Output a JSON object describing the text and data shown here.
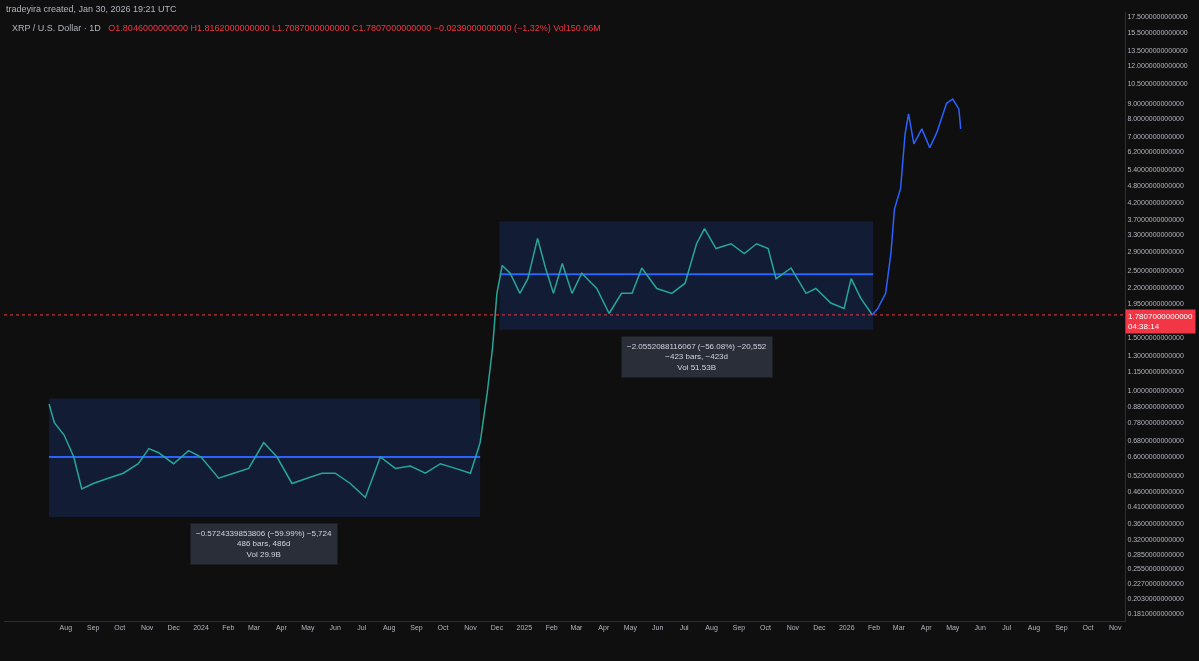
{
  "chart_data": {
    "type": "line",
    "title": "XRP / U.S. Dollar · 1D",
    "subtitle": "O1.8046000000000 H1.8162000000000 L1.7087000000000 C1.7807000000000 −0.0239000000000 (−1.32%) Vol150.06M",
    "annotations": [
      "tradeyira created, Jan 30, 2026 19:21 UTC",
      {
        "text": "−0.5724339853806 (−59.99%) −5,724\n486 bars, 486d\nVol 29.9B",
        "x": "2024-03-12",
        "y": 0.379
      },
      {
        "text": "−2.0552088116067 (−56.08%) −20,552\n−423 bars, −423d\nVol 51.53B",
        "x": "2025-07-15",
        "y": 1.59
      }
    ],
    "series": [
      {
        "color": "#2962ff",
        "x": [
          "2023-07-13",
          "2024-11-12"
        ],
        "values": [
          0.6,
          0.6
        ],
        "lower": [
          0.379,
          0.379
        ],
        "upper": [
          0.94,
          0.94
        ]
      },
      {
        "color": "#2962ff",
        "x": [
          "2024-12-04",
          "2026-01-31"
        ],
        "values": [
          2.43,
          2.43
        ],
        "lower": [
          1.59,
          1.59
        ],
        "upper": [
          3.64,
          3.64
        ]
      },
      {
        "color": "#26a69a",
        "x": [
          "2023-07-13",
          "2023-07-19",
          "2023-07-30",
          "2023-08-10",
          "2023-08-19",
          "2023-09-01",
          "2023-09-18",
          "2023-10-05",
          "2023-10-22",
          "2023-11-03",
          "2023-11-14",
          "2023-12-01",
          "2023-12-18",
          "2024-01-01",
          "2024-01-21",
          "2024-02-07",
          "2024-02-24",
          "2024-03-12",
          "2024-03-27",
          "2024-04-13",
          "2024-04-30",
          "2024-05-17",
          "2024-06-01",
          "2024-06-18",
          "2024-07-05",
          "2024-07-22",
          "2024-08-08",
          "2024-08-25",
          "2024-09-11",
          "2024-09-28",
          "2024-10-15",
          "2024-11-01",
          "2024-11-12",
          "2024-11-20",
          "2024-11-26",
          "2024-12-01",
          "2024-12-07",
          "2024-12-16",
          "2024-12-27",
          "2025-01-05",
          "2025-01-16",
          "2025-01-25",
          "2025-02-03",
          "2025-02-13",
          "2025-02-24",
          "2025-03-07",
          "2025-03-24",
          "2025-04-07",
          "2025-04-21",
          "2025-05-03",
          "2025-05-14",
          "2025-05-31",
          "2025-06-17",
          "2025-07-02",
          "2025-07-15",
          "2025-07-24",
          "2025-08-06",
          "2025-08-23",
          "2025-09-07",
          "2025-09-21",
          "2025-10-04",
          "2025-10-13",
          "2025-10-30",
          "2025-11-16",
          "2025-11-27",
          "2025-12-14",
          "2025-12-29",
          "2026-01-06",
          "2026-01-17",
          "2026-01-30"
        ],
        "values": [
          0.9,
          0.78,
          0.71,
          0.6,
          0.47,
          0.49,
          0.51,
          0.53,
          0.57,
          0.64,
          0.62,
          0.57,
          0.63,
          0.6,
          0.51,
          0.53,
          0.55,
          0.67,
          0.6,
          0.49,
          0.51,
          0.53,
          0.53,
          0.49,
          0.44,
          0.6,
          0.55,
          0.56,
          0.53,
          0.57,
          0.55,
          0.53,
          0.67,
          0.98,
          1.38,
          2.1,
          2.6,
          2.45,
          2.1,
          2.35,
          3.2,
          2.55,
          2.1,
          2.64,
          2.1,
          2.45,
          2.18,
          1.8,
          2.1,
          2.1,
          2.55,
          2.18,
          2.1,
          2.27,
          3.07,
          3.45,
          2.96,
          3.07,
          2.85,
          3.07,
          2.96,
          2.35,
          2.55,
          2.1,
          2.18,
          1.95,
          1.87,
          2.35,
          2.02,
          1.78
        ]
      },
      {
        "color": "#2962ff",
        "x": [
          "2026-01-30",
          "2026-02-05",
          "2026-02-14",
          "2026-02-20",
          "2026-02-24",
          "2026-03-03",
          "2026-03-08",
          "2026-03-12",
          "2026-03-18",
          "2026-03-27",
          "2026-04-05",
          "2026-04-13",
          "2026-04-24",
          "2026-05-01",
          "2026-05-08",
          "2026-05-10"
        ],
        "values": [
          1.78,
          1.87,
          2.1,
          2.85,
          4.0,
          4.7,
          7.1,
          8.3,
          6.6,
          7.4,
          6.4,
          7.2,
          9.0,
          9.3,
          8.6,
          7.4
        ]
      }
    ],
    "ref_lines": [
      {
        "axis": "y",
        "value": 1.7807,
        "label": "1.7807000000000\n04:38:14",
        "color": "#f23645",
        "line_style": "dotted"
      }
    ],
    "log": true,
    "grid": false,
    "xlim": [
      "2023-05-23",
      "2026-11-12"
    ],
    "xticks": [
      {
        "value": "2023-08-01",
        "label": "Aug"
      },
      {
        "value": "2023-09-01",
        "label": "Sep"
      },
      {
        "value": "2023-10-01",
        "label": "Oct"
      },
      {
        "value": "2023-11-01",
        "label": "Nov"
      },
      {
        "value": "2023-12-01",
        "label": "Dec"
      },
      {
        "value": "2024-01-01",
        "label": "2024"
      },
      {
        "value": "2024-02-01",
        "label": "Feb"
      },
      {
        "value": "2024-03-01",
        "label": "Mar"
      },
      {
        "value": "2024-04-01",
        "label": "Apr"
      },
      {
        "value": "2024-05-01",
        "label": "May"
      },
      {
        "value": "2024-06-01",
        "label": "Jun"
      },
      {
        "value": "2024-07-01",
        "label": "Jul"
      },
      {
        "value": "2024-08-01",
        "label": "Aug"
      },
      {
        "value": "2024-09-01",
        "label": "Sep"
      },
      {
        "value": "2024-10-01",
        "label": "Oct"
      },
      {
        "value": "2024-11-01",
        "label": "Nov"
      },
      {
        "value": "2024-12-01",
        "label": "Dec"
      },
      {
        "value": "2025-01-01",
        "label": "2025"
      },
      {
        "value": "2025-02-01",
        "label": "Feb"
      },
      {
        "value": "2025-03-01",
        "label": "Mar"
      },
      {
        "value": "2025-04-01",
        "label": "Apr"
      },
      {
        "value": "2025-05-01",
        "label": "May"
      },
      {
        "value": "2025-06-01",
        "label": "Jun"
      },
      {
        "value": "2025-07-01",
        "label": "Jul"
      },
      {
        "value": "2025-08-01",
        "label": "Aug"
      },
      {
        "value": "2025-09-01",
        "label": "Sep"
      },
      {
        "value": "2025-10-01",
        "label": "Oct"
      },
      {
        "value": "2025-11-01",
        "label": "Nov"
      },
      {
        "value": "2025-12-01",
        "label": "Dec"
      },
      {
        "value": "2026-01-01",
        "label": "2026"
      },
      {
        "value": "2026-02-01",
        "label": "Feb"
      },
      {
        "value": "2026-03-01",
        "label": "Mar"
      },
      {
        "value": "2026-04-01",
        "label": "Apr"
      },
      {
        "value": "2026-05-01",
        "label": "May"
      },
      {
        "value": "2026-06-01",
        "label": "Jun"
      },
      {
        "value": "2026-07-01",
        "label": "Jul"
      },
      {
        "value": "2026-08-01",
        "label": "Aug"
      },
      {
        "value": "2026-09-01",
        "label": "Sep"
      },
      {
        "value": "2026-10-01",
        "label": "Oct"
      },
      {
        "value": "2026-11-01",
        "label": "Nov"
      }
    ],
    "ylim": [
      0.171,
      18.1
    ],
    "yticks": [
      {
        "value": 17.5,
        "label": "17.5000000000000"
      },
      {
        "value": 15.5,
        "label": "15.5000000000000"
      },
      {
        "value": 13.5,
        "label": "13.5000000000000"
      },
      {
        "value": 12,
        "label": "12.0000000000000"
      },
      {
        "value": 10.5,
        "label": "10.5000000000000"
      },
      {
        "value": 9,
        "label": "9.0000000000000"
      },
      {
        "value": 8,
        "label": "8.0000000000000"
      },
      {
        "value": 7,
        "label": "7.0000000000000"
      },
      {
        "value": 6.2,
        "label": "6.2000000000000"
      },
      {
        "value": 5.4,
        "label": "5.4000000000000"
      },
      {
        "value": 4.8,
        "label": "4.8000000000000"
      },
      {
        "value": 4.2,
        "label": "4.2000000000000"
      },
      {
        "value": 3.7,
        "label": "3.7000000000000"
      },
      {
        "value": 3.3,
        "label": "3.3000000000000"
      },
      {
        "value": 2.9,
        "label": "2.9000000000000"
      },
      {
        "value": 2.5,
        "label": "2.5000000000000"
      },
      {
        "value": 2.2,
        "label": "2.2000000000000"
      },
      {
        "value": 1.95,
        "label": "1.9500000000000"
      },
      {
        "value": 1.5,
        "label": "1.5000000000000"
      },
      {
        "value": 1.3,
        "label": "1.3000000000000"
      },
      {
        "value": 1.15,
        "label": "1.1500000000000"
      },
      {
        "value": 1,
        "label": "1.0000000000000"
      },
      {
        "value": 0.88,
        "label": "0.8800000000000"
      },
      {
        "value": 0.78,
        "label": "0.7800000000000"
      },
      {
        "value": 0.68,
        "label": "0.6800000000000"
      },
      {
        "value": 0.6,
        "label": "0.6000000000000"
      },
      {
        "value": 0.52,
        "label": "0.5200000000000"
      },
      {
        "value": 0.46,
        "label": "0.4600000000000"
      },
      {
        "value": 0.41,
        "label": "0.4100000000000"
      },
      {
        "value": 0.36,
        "label": "0.3600000000000"
      },
      {
        "value": 0.32,
        "label": "0.3200000000000"
      },
      {
        "value": 0.285,
        "label": "0.2850000000000"
      },
      {
        "value": 0.255,
        "label": "0.2550000000000"
      },
      {
        "value": 0.227,
        "label": "0.2270000000000"
      },
      {
        "value": 0.203,
        "label": "0.2030000000000"
      },
      {
        "value": 0.181,
        "label": "0.1810000000000"
      }
    ]
  }
}
